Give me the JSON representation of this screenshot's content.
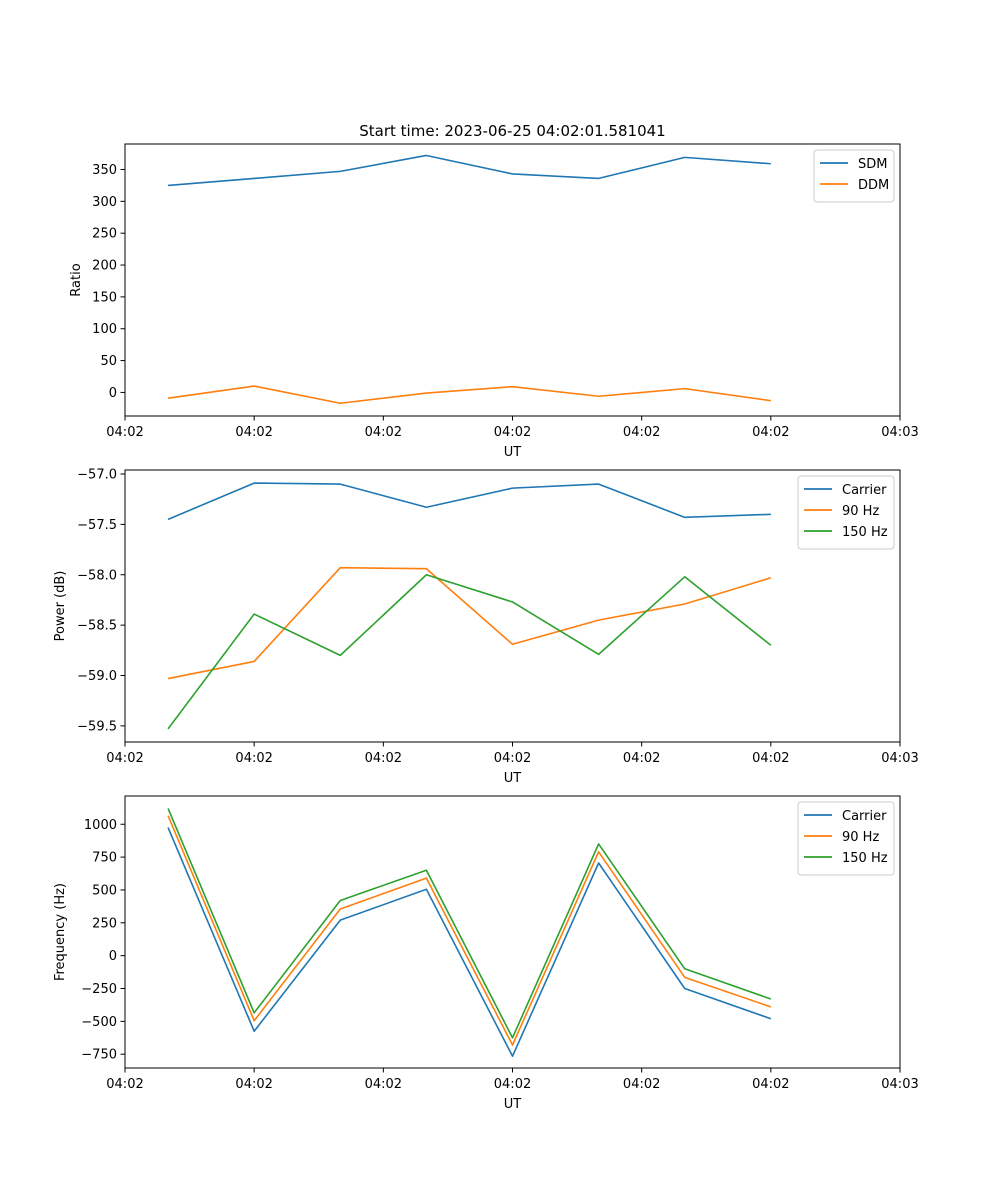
{
  "figure": {
    "title": "Start time: 2023-06-25 04:02:01.581041"
  },
  "colors": {
    "blue": "#1f77b4",
    "orange": "#ff7f0e",
    "green": "#2ca02c"
  },
  "chart_data": [
    {
      "type": "line",
      "title": "Start time: 2023-06-25 04:02:01.581041",
      "xlabel": "UT",
      "ylabel": "Ratio",
      "x": [
        1,
        2,
        3,
        4,
        5,
        6,
        7,
        8
      ],
      "xlim": [
        0.5,
        9.5
      ],
      "x_ticks": [
        0.5,
        2.0,
        3.5,
        5.0,
        6.5,
        8.0,
        9.5
      ],
      "x_tick_labels": [
        "04:02",
        "04:02",
        "04:02",
        "04:02",
        "04:02",
        "04:02",
        "04:03"
      ],
      "ylim": [
        -37,
        390
      ],
      "y_ticks": [
        0,
        50,
        100,
        150,
        200,
        250,
        300,
        350
      ],
      "y_tick_labels": [
        "0",
        "50",
        "100",
        "150",
        "200",
        "250",
        "300",
        "350"
      ],
      "grid": false,
      "legend": "top-right",
      "series": [
        {
          "name": "SDM",
          "color": "#1f77b4",
          "values": [
            325,
            336,
            347,
            372,
            343,
            336,
            369,
            359
          ]
        },
        {
          "name": "DDM",
          "color": "#ff7f0e",
          "values": [
            -9,
            10,
            -17,
            -1,
            9,
            -6,
            6,
            -13
          ]
        }
      ]
    },
    {
      "type": "line",
      "title": "",
      "xlabel": "UT",
      "ylabel": "Power (dB)",
      "x": [
        1,
        2,
        3,
        4,
        5,
        6,
        7,
        8
      ],
      "xlim": [
        0.5,
        9.5
      ],
      "x_ticks": [
        0.5,
        2.0,
        3.5,
        5.0,
        6.5,
        8.0,
        9.5
      ],
      "x_tick_labels": [
        "04:02",
        "04:02",
        "04:02",
        "04:02",
        "04:02",
        "04:02",
        "04:03"
      ],
      "ylim": [
        -59.66,
        -56.96
      ],
      "y_ticks": [
        -59.5,
        -59.0,
        -58.5,
        -58.0,
        -57.5,
        -57.0
      ],
      "y_tick_labels": [
        "−59.5",
        "−59.0",
        "−58.5",
        "−58.0",
        "−57.5",
        "−57.0"
      ],
      "grid": false,
      "legend": "top-right",
      "series": [
        {
          "name": "Carrier",
          "color": "#1f77b4",
          "values": [
            -57.45,
            -57.09,
            -57.1,
            -57.33,
            -57.14,
            -57.1,
            -57.43,
            -57.4
          ]
        },
        {
          "name": "90 Hz",
          "color": "#ff7f0e",
          "values": [
            -59.03,
            -58.86,
            -57.93,
            -57.94,
            -58.69,
            -58.45,
            -58.29,
            -58.03
          ]
        },
        {
          "name": "150 Hz",
          "color": "#2ca02c",
          "values": [
            -59.53,
            -58.39,
            -58.8,
            -58.0,
            -58.27,
            -58.79,
            -58.02,
            -58.7
          ]
        }
      ]
    },
    {
      "type": "line",
      "title": "",
      "xlabel": "UT",
      "ylabel": "Frequency (Hz)",
      "x": [
        1,
        2,
        3,
        4,
        5,
        6,
        7,
        8
      ],
      "xlim": [
        0.5,
        9.5
      ],
      "x_ticks": [
        0.5,
        2.0,
        3.5,
        5.0,
        6.5,
        8.0,
        9.5
      ],
      "x_tick_labels": [
        "04:02",
        "04:02",
        "04:02",
        "04:02",
        "04:02",
        "04:02",
        "04:03"
      ],
      "ylim": [
        -855,
        1215
      ],
      "y_ticks": [
        -750,
        -500,
        -250,
        0,
        250,
        500,
        750,
        1000
      ],
      "y_tick_labels": [
        "−750",
        "−500",
        "−250",
        "0",
        "250",
        "500",
        "750",
        "1000"
      ],
      "grid": false,
      "legend": "top-right",
      "series": [
        {
          "name": "Carrier",
          "color": "#1f77b4",
          "values": [
            975,
            -575,
            270,
            505,
            -765,
            705,
            -250,
            -480
          ]
        },
        {
          "name": "90 Hz",
          "color": "#ff7f0e",
          "values": [
            1065,
            -495,
            355,
            590,
            -680,
            790,
            -165,
            -390
          ]
        },
        {
          "name": "150 Hz",
          "color": "#2ca02c",
          "values": [
            1120,
            -435,
            420,
            650,
            -625,
            850,
            -100,
            -330
          ]
        }
      ]
    }
  ]
}
